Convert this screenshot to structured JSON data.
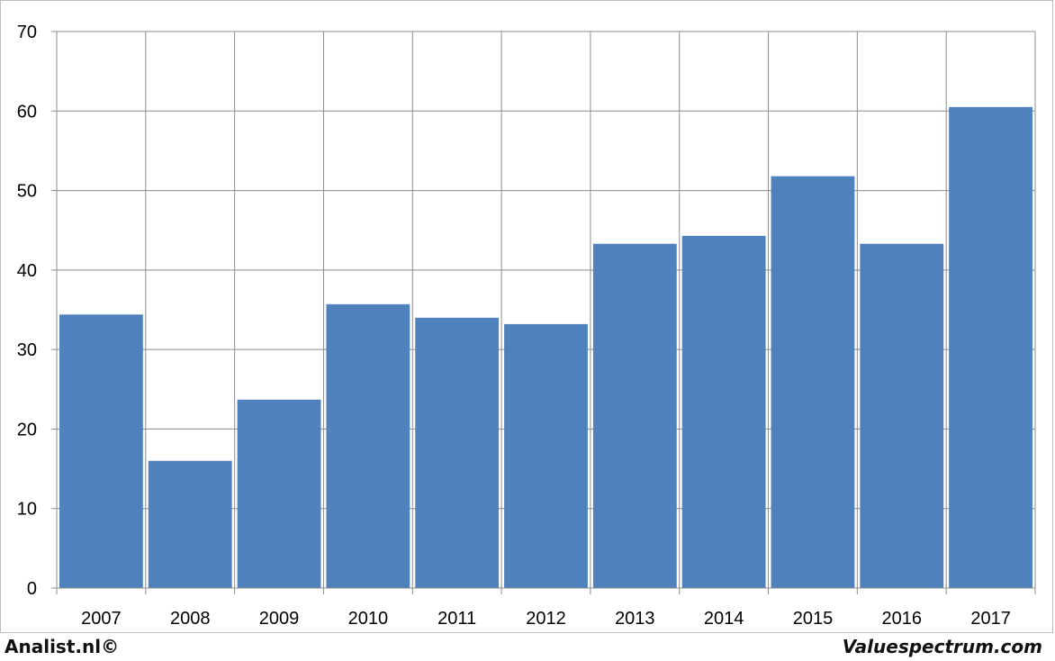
{
  "chart_data": {
    "type": "bar",
    "title": "",
    "xlabel": "",
    "ylabel": "",
    "categories": [
      "2007",
      "2008",
      "2009",
      "2010",
      "2011",
      "2012",
      "2013",
      "2014",
      "2015",
      "2016",
      "2017"
    ],
    "values": [
      34.4,
      16.0,
      23.7,
      35.7,
      34.0,
      33.2,
      43.3,
      44.3,
      51.8,
      43.3,
      60.5
    ],
    "ylim": [
      0,
      70
    ],
    "yticks": [
      0,
      10,
      20,
      30,
      40,
      50,
      60,
      70
    ],
    "grid": true,
    "legend": "none",
    "bar_color": "#4F81BD",
    "grid_color": "#8c8c8c"
  },
  "footer": {
    "left_credit": "Analist.nl©",
    "right_credit": "Valuespectrum.com"
  }
}
